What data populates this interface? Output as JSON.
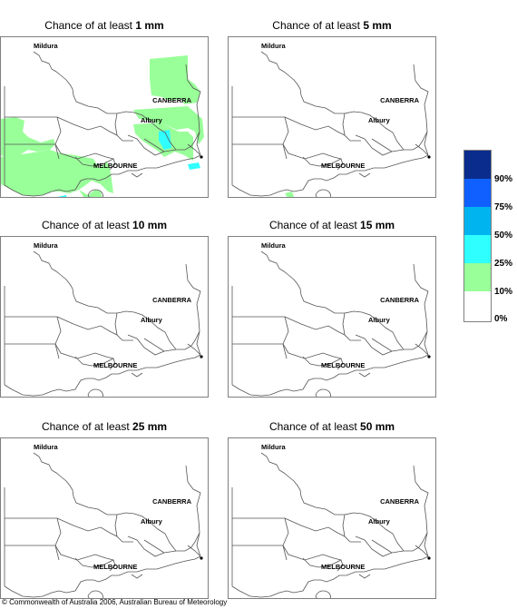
{
  "panels": [
    {
      "title_prefix": "Chance of at least",
      "amount": "1 mm",
      "rain": true
    },
    {
      "title_prefix": "Chance of at least",
      "amount": "5 mm",
      "rain": false
    },
    {
      "title_prefix": "Chance of at least",
      "amount": "10 mm",
      "rain": false
    },
    {
      "title_prefix": "Chance of at least",
      "amount": "15 mm",
      "rain": false
    },
    {
      "title_prefix": "Chance of at least",
      "amount": "25 mm",
      "rain": false
    },
    {
      "title_prefix": "Chance of at least",
      "amount": "50 mm",
      "rain": false
    }
  ],
  "place_labels": {
    "mildura": "Mildura",
    "canberra": "CANBERRA",
    "albury": "Albury",
    "melbourne": "MELBOURNE"
  },
  "legend": {
    "colors": [
      "#0a2c8c",
      "#1060ff",
      "#00b4f0",
      "#30ffff",
      "#99ff99",
      "#ffffff"
    ],
    "labels": [
      "90%",
      "75%",
      "50%",
      "25%",
      "10%",
      "0%"
    ]
  },
  "copyright": "© Commonwealth of Australia 2006, Australian Bureau of Meteorology"
}
